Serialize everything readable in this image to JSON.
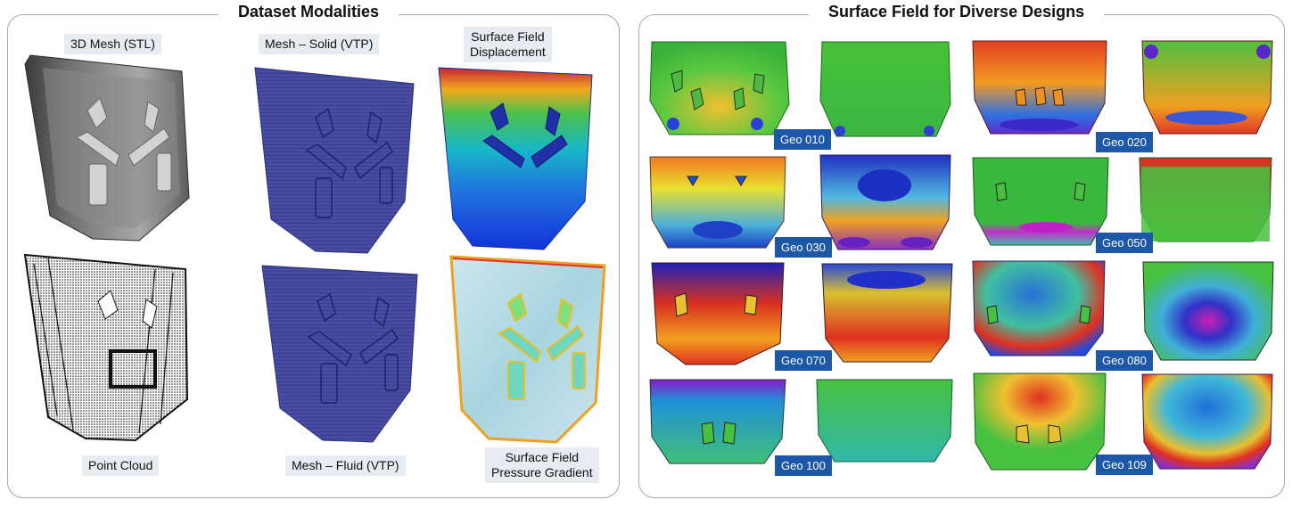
{
  "left_panel": {
    "title": "Dataset Modalities",
    "labels": {
      "mesh_stl": "3D Mesh (STL)",
      "mesh_solid": "Mesh – Solid (VTP)",
      "displacement_line1": "Surface Field",
      "displacement_line2": "Displacement",
      "point_cloud": "Point Cloud",
      "mesh_fluid": "Mesh – Fluid (VTP)",
      "pressure_line1": "Surface Field",
      "pressure_line2": "Pressure Gradient"
    }
  },
  "right_panel": {
    "title": "Surface Field for Diverse Designs",
    "geometries": [
      "Geo 010",
      "Geo 020",
      "Geo 030",
      "Geo 050",
      "Geo 070",
      "Geo 080",
      "Geo 100",
      "Geo 109"
    ]
  },
  "colors": {
    "tag_bg": "#1d57a8",
    "label_bg": "#e6ecf1",
    "mesh_blue": "#3b3f96"
  }
}
